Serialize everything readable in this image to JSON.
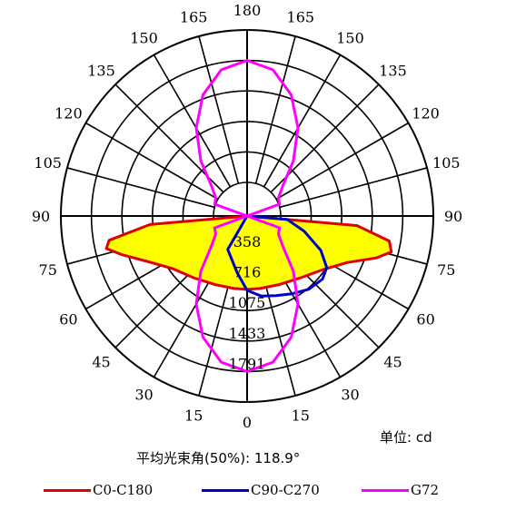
{
  "chart_data": {
    "type": "polar",
    "unit_label": "单位: cd",
    "beam_angle_label": "平均光束角(50%): 118.9°",
    "angle_tick_labels": [
      "0",
      "15",
      "30",
      "45",
      "60",
      "75",
      "90",
      "105",
      "120",
      "135",
      "150",
      "165",
      "180",
      "165",
      "150",
      "135",
      "120",
      "105",
      "90",
      "75",
      "60",
      "45",
      "30",
      "15"
    ],
    "radial_tick_labels": [
      "358",
      "716",
      "1075",
      "1433",
      "1791"
    ],
    "radial_max": 1791,
    "series": [
      {
        "name": "C0-C180",
        "color": "#e00000",
        "fill": "#ffff00",
        "points": [
          {
            "angle": -90,
            "value": 0
          },
          {
            "angle": -85,
            "value": 750
          },
          {
            "angle": -80,
            "value": 1250
          },
          {
            "angle": -77,
            "value": 1300
          },
          {
            "angle": -73,
            "value": 1150
          },
          {
            "angle": -65,
            "value": 880
          },
          {
            "angle": -55,
            "value": 680
          },
          {
            "angle": -40,
            "value": 560
          },
          {
            "angle": -25,
            "value": 495
          },
          {
            "angle": -10,
            "value": 470
          },
          {
            "angle": 0,
            "value": 468
          },
          {
            "angle": 10,
            "value": 470
          },
          {
            "angle": 25,
            "value": 495
          },
          {
            "angle": 40,
            "value": 560
          },
          {
            "angle": 55,
            "value": 700
          },
          {
            "angle": 65,
            "value": 900
          },
          {
            "angle": 72,
            "value": 1200
          },
          {
            "angle": 76,
            "value": 1350
          },
          {
            "angle": 80,
            "value": 1300
          },
          {
            "angle": 85,
            "value": 900
          },
          {
            "angle": 90,
            "value": 0
          }
        ]
      },
      {
        "name": "C90-C270",
        "color": "#0000cc",
        "points": [
          {
            "angle": -90,
            "value": 0
          },
          {
            "angle": -30,
            "value": 60
          },
          {
            "angle": -10,
            "value": 280
          },
          {
            "angle": 0,
            "value": 480
          },
          {
            "angle": 10,
            "value": 560
          },
          {
            "angle": 20,
            "value": 600
          },
          {
            "angle": 30,
            "value": 660
          },
          {
            "angle": 40,
            "value": 730
          },
          {
            "angle": 50,
            "value": 760
          },
          {
            "angle": 57,
            "value": 720
          },
          {
            "angle": 65,
            "value": 560
          },
          {
            "angle": 75,
            "value": 300
          },
          {
            "angle": 85,
            "value": 80
          },
          {
            "angle": 90,
            "value": 0
          }
        ]
      },
      {
        "name": "G72",
        "color": "#ff00ff",
        "points": [
          {
            "angle": 0,
            "value": 1433
          },
          {
            "angle": 10,
            "value": 1350
          },
          {
            "angle": 20,
            "value": 1120
          },
          {
            "angle": 30,
            "value": 800
          },
          {
            "angle": 40,
            "value": 450
          },
          {
            "angle": 50,
            "value": 150
          },
          {
            "angle": 60,
            "value": 30
          },
          {
            "angle": 70,
            "value": 10
          },
          {
            "angle": 90,
            "value": 0
          },
          {
            "angle": 110,
            "value": 10
          },
          {
            "angle": 120,
            "value": 30
          },
          {
            "angle": 130,
            "value": 150
          },
          {
            "angle": 140,
            "value": 450
          },
          {
            "angle": 150,
            "value": 800
          },
          {
            "angle": 160,
            "value": 1120
          },
          {
            "angle": 170,
            "value": 1350
          },
          {
            "angle": 180,
            "value": 1433
          },
          {
            "angle": 190,
            "value": 1350
          },
          {
            "angle": 200,
            "value": 1120
          },
          {
            "angle": 210,
            "value": 800
          },
          {
            "angle": 220,
            "value": 450
          },
          {
            "angle": 230,
            "value": 150
          },
          {
            "angle": 240,
            "value": 30
          },
          {
            "angle": 250,
            "value": 10
          },
          {
            "angle": 270,
            "value": 0
          },
          {
            "angle": 290,
            "value": 10
          },
          {
            "angle": 300,
            "value": 30
          },
          {
            "angle": 310,
            "value": 150
          },
          {
            "angle": 320,
            "value": 450
          },
          {
            "angle": 330,
            "value": 800
          },
          {
            "angle": 340,
            "value": 1120
          },
          {
            "angle": 350,
            "value": 1350
          }
        ]
      }
    ]
  }
}
